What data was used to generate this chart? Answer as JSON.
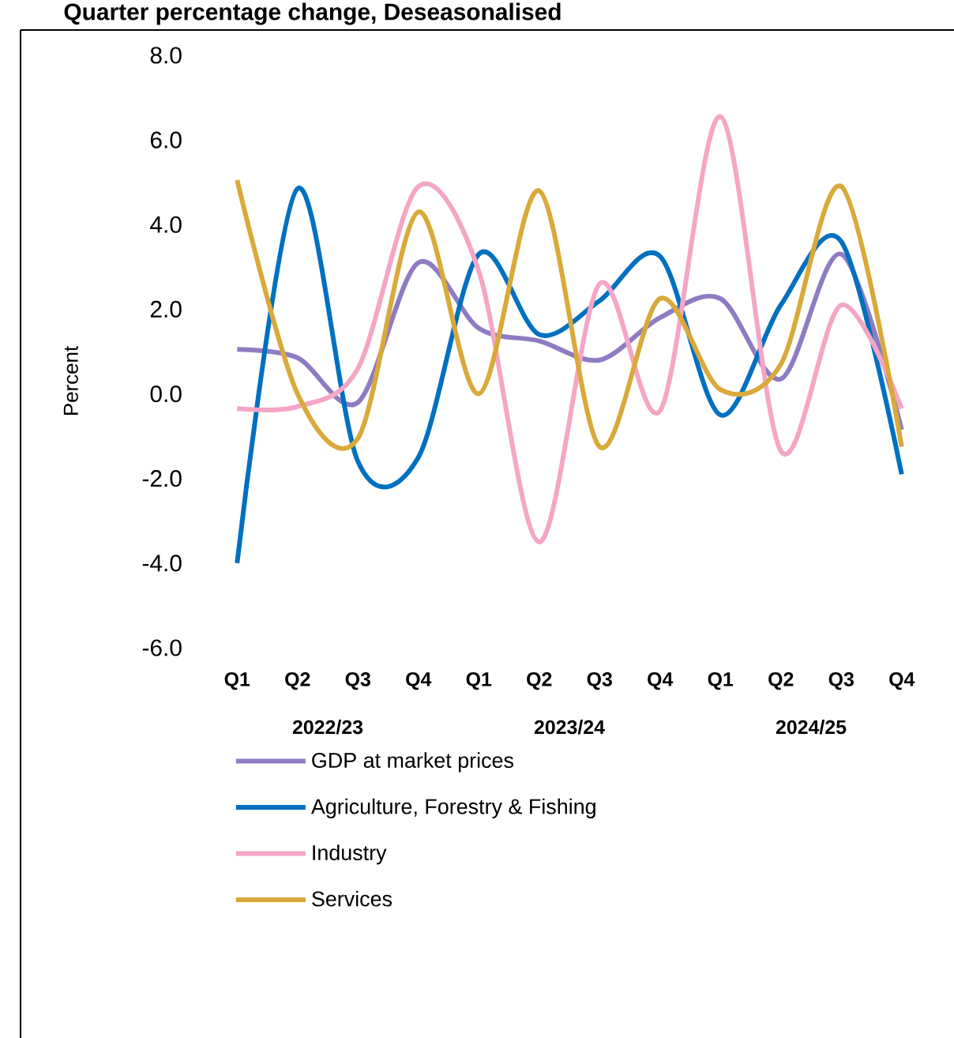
{
  "chart_data": {
    "type": "line",
    "title": "Quarter percentage change, Deseasonalised",
    "ylabel": "Percent",
    "categories": [
      "Q1",
      "Q2",
      "Q3",
      "Q4",
      "Q1",
      "Q2",
      "Q3",
      "Q4",
      "Q1",
      "Q2",
      "Q3",
      "Q4"
    ],
    "annotations": [
      "2022/23",
      "2023/24",
      "2024/25"
    ],
    "series": [
      {
        "name": "GDP at market prices",
        "color": "#8e7cc3",
        "values": [
          1.05,
          0.85,
          -0.2,
          3.1,
          1.55,
          1.25,
          0.8,
          1.8,
          2.25,
          0.35,
          3.3,
          -0.85
        ]
      },
      {
        "name": "Agriculture, Forestry & Fishing",
        "color": "#0070c0",
        "values": [
          -4.0,
          4.85,
          -1.6,
          -1.5,
          3.3,
          1.4,
          2.2,
          3.25,
          -0.5,
          2.1,
          3.6,
          -1.9
        ]
      },
      {
        "name": "Industry",
        "color": "#f4a6c6",
        "values": [
          -0.35,
          -0.3,
          0.6,
          4.9,
          2.9,
          -3.5,
          2.6,
          -0.4,
          6.55,
          -1.35,
          2.1,
          -0.35
        ]
      },
      {
        "name": "Services",
        "color": "#d9a93a",
        "values": [
          5.05,
          0.0,
          -1.05,
          4.3,
          0.0,
          4.8,
          -1.25,
          2.25,
          0.1,
          0.7,
          4.9,
          -1.25
        ]
      }
    ],
    "ylim": [
      -6,
      8
    ],
    "yticks": [
      {
        "value": 8,
        "label": "8.0"
      },
      {
        "value": 6,
        "label": "6.0"
      },
      {
        "value": 4,
        "label": "4.0"
      },
      {
        "value": 2,
        "label": "2.0"
      },
      {
        "value": 0,
        "label": "0.0"
      },
      {
        "value": -2,
        "label": "-2.0"
      },
      {
        "value": -4,
        "label": "-4.0"
      },
      {
        "value": -6,
        "label": "-6.0"
      }
    ],
    "legend": "bottom",
    "marker": "none",
    "line_style": "solid"
  }
}
